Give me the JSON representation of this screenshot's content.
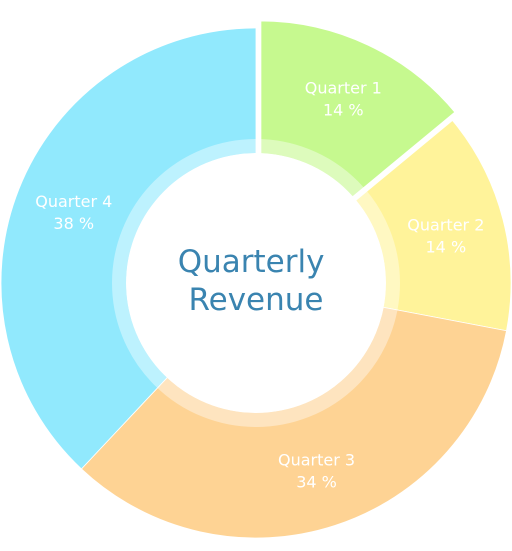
{
  "chart_data": {
    "type": "pie",
    "title_lines": [
      "Quarterly",
      "Revenue"
    ],
    "slices": [
      {
        "label": "Quarter 1",
        "value": 14,
        "value_label": "14 %",
        "color": "#c6f98f",
        "exploded": true
      },
      {
        "label": "Quarter 2",
        "value": 14,
        "value_label": "14 %",
        "color": "#fff39a",
        "exploded": false
      },
      {
        "label": "Quarter 3",
        "value": 34,
        "value_label": "34 %",
        "color": "#fed394",
        "exploded": false
      },
      {
        "label": "Quarter 4",
        "value": 38,
        "value_label": "38 %",
        "color": "#91e9fd",
        "exploded": false
      }
    ],
    "donut": true,
    "legend": "none"
  }
}
